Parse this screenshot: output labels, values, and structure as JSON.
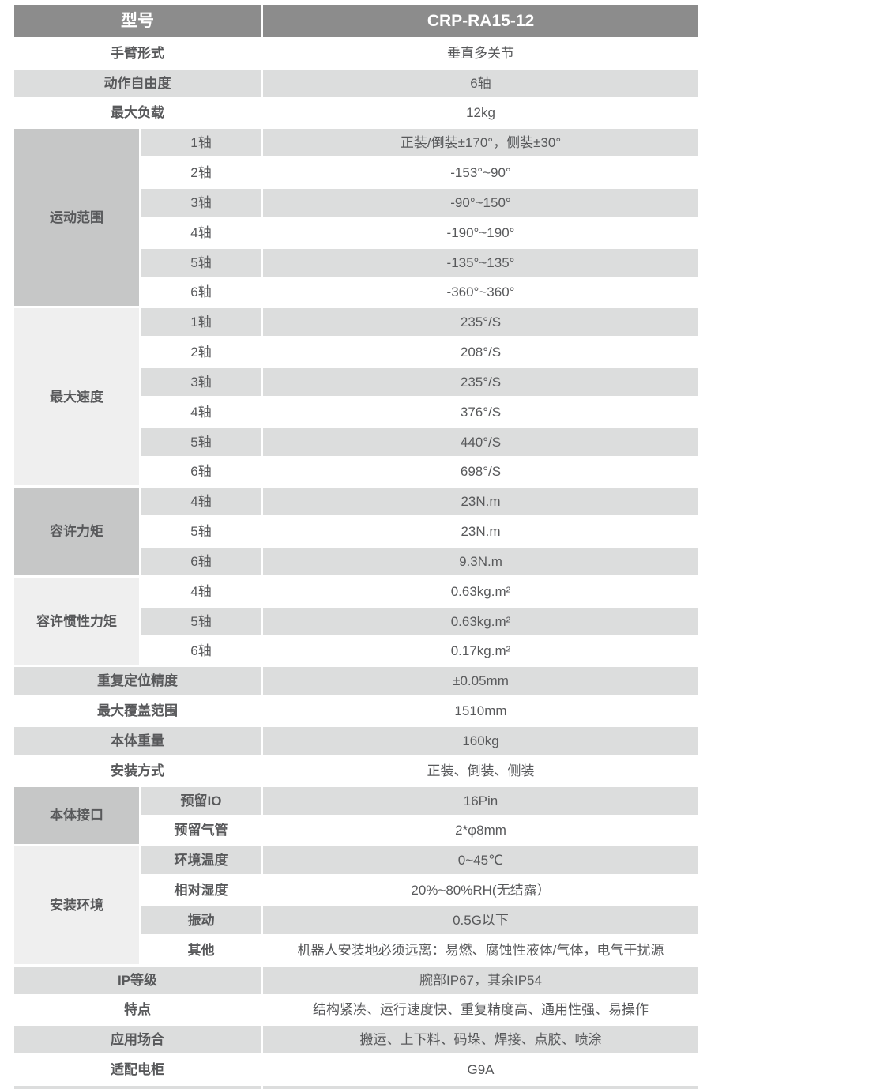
{
  "theme": {
    "header_bg": "#8c8c8c",
    "header_text": "#ffffff",
    "zebra_row_bg": "#dcdddd",
    "group_dark_bg": "#c6c7c7",
    "group_light_bg": "#efefef",
    "text_color": "#58595b"
  },
  "table": {
    "header": {
      "label": "型号",
      "value": "CRP-RA15-12"
    },
    "groups": {
      "motion_range": "运动范围",
      "max_speed": "最大速度",
      "allowable_torque": "容许力矩",
      "allowable_inertia": "容许惯性力矩",
      "body_interface": "本体接口",
      "install_env": "安装环境"
    },
    "rows": [
      {
        "label": "手臂形式",
        "value": "垂直多关节"
      },
      {
        "label": "动作自由度",
        "value": "6轴"
      },
      {
        "label": "最大负载",
        "value": "12kg"
      },
      {
        "label": "1轴",
        "value": "正装/倒装±170°，侧装±30°"
      },
      {
        "label": "2轴",
        "value": "-153°~90°"
      },
      {
        "label": "3轴",
        "value": "-90°~150°"
      },
      {
        "label": "4轴",
        "value": "-190°~190°"
      },
      {
        "label": "5轴",
        "value": "-135°~135°"
      },
      {
        "label": "6轴",
        "value": "-360°~360°"
      },
      {
        "label": "1轴",
        "value": "235°/S"
      },
      {
        "label": "2轴",
        "value": "208°/S"
      },
      {
        "label": "3轴",
        "value": "235°/S"
      },
      {
        "label": "4轴",
        "value": "376°/S"
      },
      {
        "label": "5轴",
        "value": "440°/S"
      },
      {
        "label": "6轴",
        "value": "698°/S"
      },
      {
        "label": "4轴",
        "value": "23N.m"
      },
      {
        "label": "5轴",
        "value": "23N.m"
      },
      {
        "label": "6轴",
        "value": "9.3N.m"
      },
      {
        "label": "4轴",
        "value": "0.63kg.m²"
      },
      {
        "label": "5轴",
        "value": "0.63kg.m²"
      },
      {
        "label": "6轴",
        "value": "0.17kg.m²"
      },
      {
        "label": "重复定位精度",
        "value": "±0.05mm"
      },
      {
        "label": "最大覆盖范围",
        "value": "1510mm"
      },
      {
        "label": "本体重量",
        "value": "160kg"
      },
      {
        "label": "安装方式",
        "value": "正装、倒装、侧装"
      },
      {
        "label": "预留IO",
        "value": "16Pin"
      },
      {
        "label": "预留气管",
        "value": "2*φ8mm"
      },
      {
        "label": "环境温度",
        "value": "0~45℃"
      },
      {
        "label": "相对湿度",
        "value": "20%~80%RH(无结露）"
      },
      {
        "label": "振动",
        "value": "0.5G以下"
      },
      {
        "label": "其他",
        "value": "机器人安装地必须远离：易燃、腐蚀性液体/气体，电气干扰源"
      },
      {
        "label": "IP等级",
        "value": "腕部IP67，其余IP54"
      },
      {
        "label": "特点",
        "value": "结构紧凑、运行速度快、重复精度高、通用性强、易操作"
      },
      {
        "label": "应用场合",
        "value": "搬运、上下料、码垛、焊接、点胶、喷涂"
      },
      {
        "label": "适配电柜",
        "value": "G9A"
      }
    ]
  }
}
